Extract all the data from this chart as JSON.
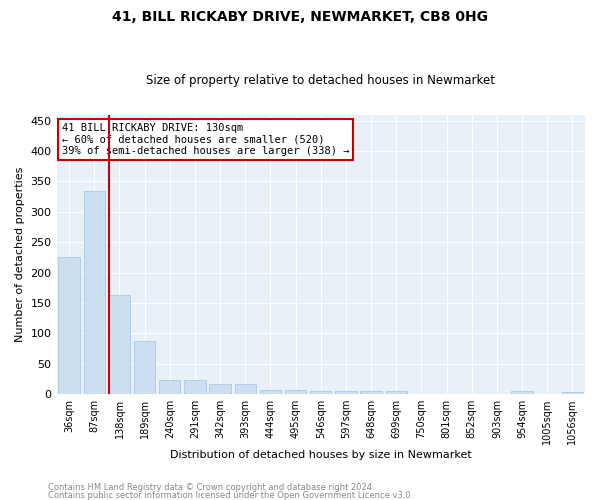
{
  "title": "41, BILL RICKABY DRIVE, NEWMARKET, CB8 0HG",
  "subtitle": "Size of property relative to detached houses in Newmarket",
  "xlabel": "Distribution of detached houses by size in Newmarket",
  "ylabel": "Number of detached properties",
  "bar_color": "#ccdff0",
  "bar_edgecolor": "#a8c8e8",
  "bg_color": "#e8f0f8",
  "grid_color": "#ffffff",
  "categories": [
    "36sqm",
    "87sqm",
    "138sqm",
    "189sqm",
    "240sqm",
    "291sqm",
    "342sqm",
    "393sqm",
    "444sqm",
    "495sqm",
    "546sqm",
    "597sqm",
    "648sqm",
    "699sqm",
    "750sqm",
    "801sqm",
    "852sqm",
    "903sqm",
    "954sqm",
    "1005sqm",
    "1056sqm"
  ],
  "values": [
    226,
    335,
    163,
    87,
    23,
    23,
    17,
    17,
    7,
    7,
    5,
    5,
    5,
    5,
    0,
    0,
    0,
    0,
    5,
    0,
    3
  ],
  "annotation_text": "41 BILL RICKABY DRIVE: 130sqm\n← 60% of detached houses are smaller (520)\n39% of semi-detached houses are larger (338) →",
  "annotation_box_color": "#ffffff",
  "annotation_box_edge": "#cc0000",
  "vline_color": "#cc0000",
  "vline_x": 2,
  "ylim": [
    0,
    460
  ],
  "yticks": [
    0,
    50,
    100,
    150,
    200,
    250,
    300,
    350,
    400,
    450
  ],
  "footnote1": "Contains HM Land Registry data © Crown copyright and database right 2024.",
  "footnote2": "Contains public sector information licensed under the Open Government Licence v3.0."
}
